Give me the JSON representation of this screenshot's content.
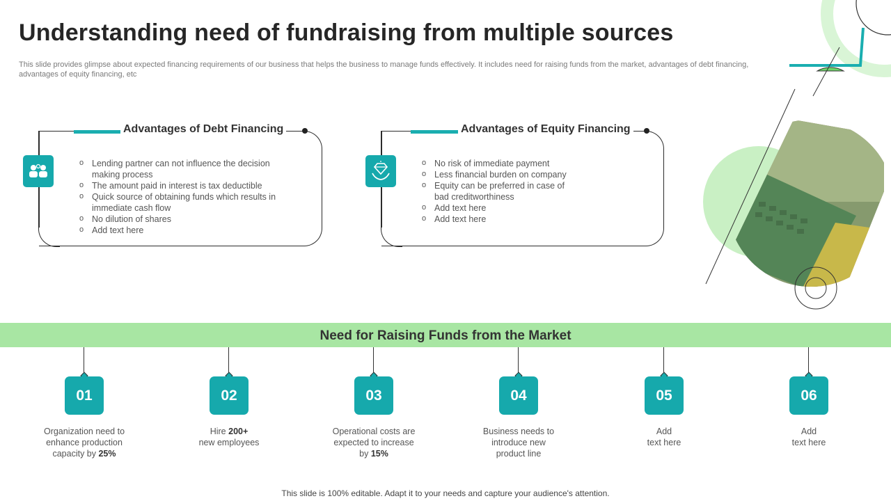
{
  "title": "Understanding need of fundraising from multiple sources",
  "subtitle": "This slide provides glimpse about expected financing requirements of our business that helps the business to manage funds effectively. It includes need for raising funds from the market, advantages of debt financing, advantages of equity financing, etc",
  "debt": {
    "title": "Advantages of Debt Financing",
    "icon": "people-icon",
    "points": [
      "Lending partner can not influence the decision\nmaking process",
      "The amount paid in interest is tax deductible",
      "Quick source of obtaining funds which results in\nimmediate cash flow",
      "No dilution of shares",
      "Add text here"
    ]
  },
  "equity": {
    "title": "Advantages of Equity Financing",
    "icon": "diamond-hand-icon",
    "points": [
      "No risk of immediate payment",
      "Less financial burden on company",
      "Equity can be preferred  in case of\nbad creditworthiness",
      "Add text here",
      "Add text here"
    ]
  },
  "market": {
    "title": "Need for Raising Funds from the Market",
    "steps": [
      {
        "num": "01",
        "pre": "Organization  need to\nenhance production\ncapacity by ",
        "bold": "25%",
        "post": ""
      },
      {
        "num": "02",
        "pre": "Hire ",
        "bold": "200+",
        "post": "\nnew employees"
      },
      {
        "num": "03",
        "pre": "Operational costs are\nexpected to increase\nby ",
        "bold": "15%",
        "post": ""
      },
      {
        "num": "04",
        "pre": "Business needs to\nintroduce new\nproduct line",
        "bold": "",
        "post": ""
      },
      {
        "num": "05",
        "pre": "Add\ntext here",
        "bold": "",
        "post": ""
      },
      {
        "num": "06",
        "pre": "Add\ntext here",
        "bold": "",
        "post": ""
      }
    ]
  },
  "footer": "This slide is 100% editable. Adapt it to your needs and capture your audience's attention.",
  "colors": {
    "teal": "#16a9ac",
    "green_band": "#a8e6a3",
    "light_green": "#c9f0c4"
  }
}
